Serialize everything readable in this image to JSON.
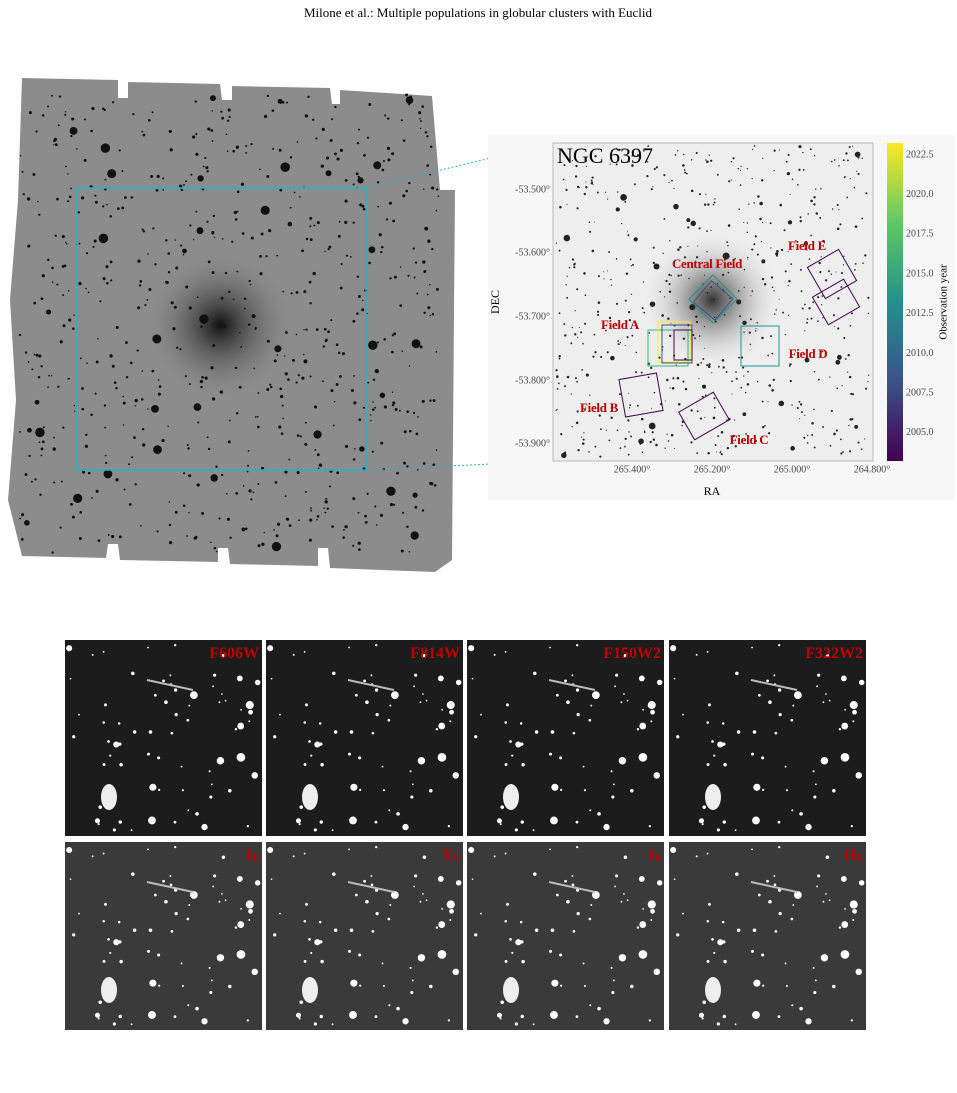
{
  "header": {
    "running_title": "Milone et al.: Multiple populations in globular clusters with Euclid"
  },
  "inset": {
    "title": "NGC 6397",
    "y_label": "DEC",
    "x_label": "RA",
    "colorbar_label": "Observation year",
    "y_ticks": [
      "-53.500°",
      "-53.600°",
      "-53.700°",
      "-53.800°",
      "-53.900°"
    ],
    "x_ticks": [
      "265.400°",
      "265.200°",
      "265.000°",
      "264.800°"
    ],
    "colorbar_ticks": [
      "2022.5",
      "2020.0",
      "2017.5",
      "2015.0",
      "2012.5",
      "2010.0",
      "2007.5",
      "2005.0"
    ],
    "fields": [
      "Central Field",
      "Field E",
      "Field A",
      "Field D",
      "Field B",
      "Field C"
    ]
  },
  "panels": [
    {
      "label": "F606W"
    },
    {
      "label": "F814W"
    },
    {
      "label": "F150W2"
    },
    {
      "label": "F322W2"
    },
    {
      "label": "I",
      "sub": "E"
    },
    {
      "label": "Y",
      "sub": "E"
    },
    {
      "label": "J",
      "sub": "E"
    },
    {
      "label": "H",
      "sub": "E"
    }
  ]
}
